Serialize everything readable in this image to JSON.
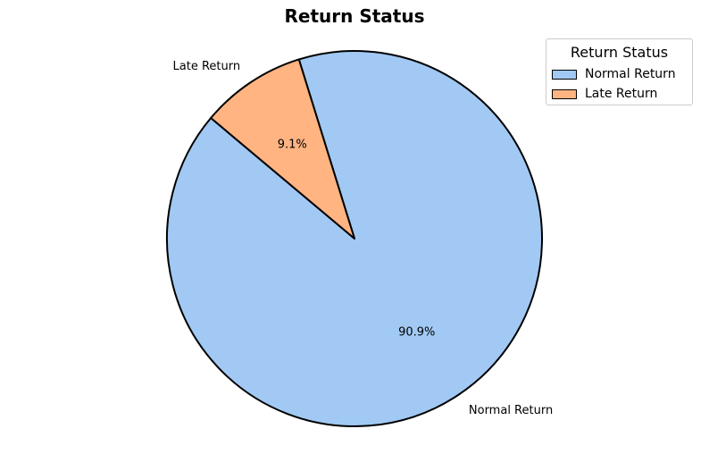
{
  "chart_data": {
    "type": "pie",
    "title": "Return Status",
    "slices": [
      {
        "label": "Normal Return",
        "value": 90.9,
        "pct_label": "90.9%",
        "color": "#a1c9f4"
      },
      {
        "label": "Late Return",
        "value": 9.1,
        "pct_label": "9.1%",
        "color": "#ffb482"
      }
    ],
    "start_angle_deg": 140,
    "edge_color": "#000000",
    "legend": {
      "title": "Return Status",
      "placement": "top-right",
      "entries": [
        "Normal Return",
        "Late Return"
      ]
    }
  }
}
